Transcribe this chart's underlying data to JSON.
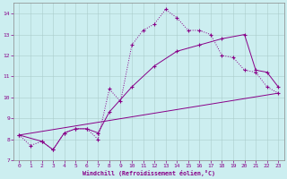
{
  "xlabel": "Windchill (Refroidissement éolien,°C)",
  "bg_color": "#cceef0",
  "line_color": "#880088",
  "xlim": [
    -0.5,
    23.5
  ],
  "ylim": [
    7,
    14.5
  ],
  "xticks": [
    0,
    1,
    2,
    3,
    4,
    5,
    6,
    7,
    8,
    9,
    10,
    11,
    12,
    13,
    14,
    15,
    16,
    17,
    18,
    19,
    20,
    21,
    22,
    23
  ],
  "yticks": [
    7,
    8,
    9,
    10,
    11,
    12,
    13,
    14
  ],
  "series1_x": [
    0,
    1,
    2,
    3,
    4,
    5,
    6,
    7,
    8,
    9,
    10,
    11,
    12,
    13,
    14,
    15,
    16,
    17,
    18,
    19,
    20,
    21,
    22,
    23
  ],
  "series1_y": [
    8.2,
    7.7,
    7.9,
    7.5,
    8.3,
    8.5,
    8.5,
    8.0,
    10.4,
    9.8,
    12.5,
    13.2,
    13.5,
    14.2,
    13.8,
    13.2,
    13.2,
    13.0,
    12.0,
    11.9,
    11.3,
    11.2,
    10.5,
    10.2
  ],
  "series2_x": [
    0,
    2,
    3,
    4,
    5,
    6,
    7,
    8,
    10,
    12,
    14,
    16,
    18,
    20,
    21,
    22,
    23
  ],
  "series2_y": [
    8.2,
    7.9,
    7.5,
    8.3,
    8.5,
    8.5,
    8.3,
    9.3,
    10.5,
    11.5,
    12.2,
    12.5,
    12.8,
    13.0,
    11.3,
    11.2,
    10.5
  ],
  "series3_x": [
    0,
    23
  ],
  "series3_y": [
    8.2,
    10.2
  ]
}
